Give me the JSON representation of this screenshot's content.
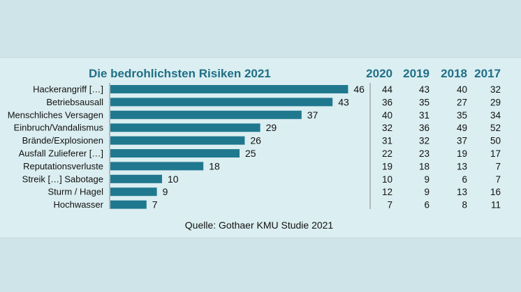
{
  "chart_data": {
    "type": "bar",
    "orientation": "horizontal",
    "title": "Die bedrohlichsten Risiken 2021",
    "categories": [
      "Hackerangriff […]",
      "Betriebsausall",
      "Menschliches Versagen",
      "Einbruch/Vandalismus",
      "Brände/Explosionen",
      "Ausfall Zulieferer […]",
      "Reputationsverluste",
      "Streik […] Sabotage",
      "Sturm / Hagel",
      "Hochwasser"
    ],
    "series": [
      {
        "name": "2021",
        "values": [
          46,
          43,
          37,
          29,
          26,
          25,
          18,
          10,
          9,
          7
        ]
      }
    ],
    "xlim": [
      0,
      50
    ],
    "grid": false,
    "bar_color": "#20788f",
    "table": {
      "years": [
        "2020",
        "2019",
        "2018",
        "2017"
      ],
      "values": [
        [
          44,
          43,
          40,
          32
        ],
        [
          36,
          35,
          27,
          29
        ],
        [
          40,
          31,
          35,
          34
        ],
        [
          32,
          36,
          49,
          52
        ],
        [
          31,
          32,
          37,
          50
        ],
        [
          22,
          23,
          19,
          17
        ],
        [
          19,
          18,
          13,
          7
        ],
        [
          10,
          9,
          6,
          7
        ],
        [
          12,
          9,
          13,
          16
        ],
        [
          7,
          6,
          8,
          11
        ]
      ]
    },
    "source": "Quelle: Gothaer KMU Studie 2021"
  }
}
